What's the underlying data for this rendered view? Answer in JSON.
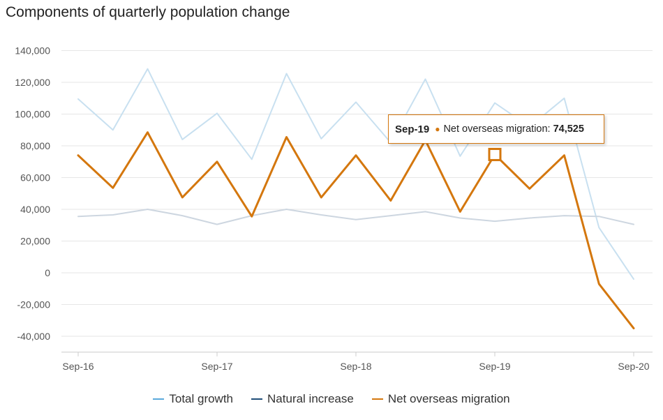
{
  "title": "Components of quarterly population change",
  "legend": [
    "Total growth",
    "Natural increase",
    "Net overseas migration"
  ],
  "tooltip": {
    "category": "Sep-19",
    "series": "Net overseas migration:",
    "value": "74,525"
  },
  "colors": {
    "total_growth": "#c8e0f0",
    "natural_increase": "#cdd6e0",
    "net_overseas_migration": "#d4770e",
    "legend_total_growth": "#5aa9dc",
    "legend_natural_increase": "#1f4e79",
    "legend_net_overseas_migration": "#d4770e",
    "grid": "#e6e6e6"
  },
  "chart_data": {
    "type": "line",
    "title": "Components of quarterly population change",
    "x": [
      "Sep-16",
      "Dec-16",
      "Mar-17",
      "Jun-17",
      "Sep-17",
      "Dec-17",
      "Mar-18",
      "Jun-18",
      "Sep-18",
      "Dec-18",
      "Mar-19",
      "Jun-19",
      "Sep-19",
      "Dec-19",
      "Mar-20",
      "Jun-20",
      "Sep-20"
    ],
    "x_tick_labels": [
      "Sep-16",
      "Sep-17",
      "Sep-18",
      "Sep-19",
      "Sep-20"
    ],
    "y_ticks": [
      140000,
      120000,
      100000,
      80000,
      60000,
      40000,
      20000,
      0,
      -20000,
      -40000
    ],
    "y_tick_labels": [
      "140,000",
      "120,000",
      "100,000",
      "80,000",
      "60,000",
      "40,000",
      "20,000",
      "0",
      "-20,000",
      "-40,000"
    ],
    "ylim": [
      -50000,
      140000
    ],
    "grid": true,
    "legend_position": "bottom",
    "series": [
      {
        "name": "Total growth",
        "values": [
          109500,
          90000,
          128500,
          84000,
          100500,
          71500,
          125500,
          84500,
          107500,
          82000,
          122000,
          73500,
          107000,
          92000,
          110000,
          28500,
          -4000
        ]
      },
      {
        "name": "Natural increase",
        "values": [
          35500,
          36500,
          40000,
          36000,
          30500,
          36000,
          40000,
          36500,
          33500,
          36000,
          38500,
          34500,
          32500,
          34500,
          36000,
          35500,
          30500
        ]
      },
      {
        "name": "Net overseas migration",
        "values": [
          74000,
          53500,
          88500,
          47500,
          70000,
          35500,
          85500,
          47500,
          74000,
          45500,
          83500,
          38500,
          74525,
          53000,
          74000,
          -7000,
          -35000
        ]
      }
    ]
  }
}
